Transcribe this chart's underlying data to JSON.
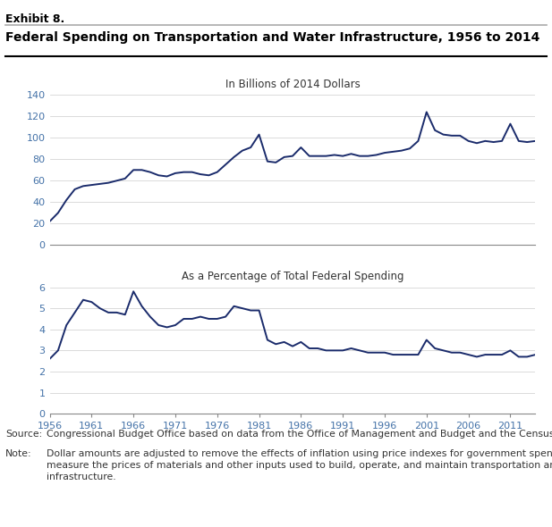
{
  "exhibit_label": "Exhibit 8.",
  "title": "Federal Spending on Transportation and Water Infrastructure, 1956 to 2014",
  "subtitle1": "In Billions of 2014 Dollars",
  "subtitle2": "As a Percentage of Total Federal Spending",
  "source_label": "Source:",
  "source_text": "Congressional Budget Office based on data from the Office of Management and Budget and the Census Bureau.",
  "note_label": "Note:",
  "note_text": "Dollar amounts are adjusted to remove the effects of inflation using price indexes for government spending that measure the prices of materials and other inputs used to build, operate, and maintain transportation and water infrastructure.",
  "line_color": "#1a2b6b",
  "years": [
    1956,
    1957,
    1958,
    1959,
    1960,
    1961,
    1962,
    1963,
    1964,
    1965,
    1966,
    1967,
    1968,
    1969,
    1970,
    1971,
    1972,
    1973,
    1974,
    1975,
    1976,
    1977,
    1978,
    1979,
    1980,
    1981,
    1982,
    1983,
    1984,
    1985,
    1986,
    1987,
    1988,
    1989,
    1990,
    1991,
    1992,
    1993,
    1994,
    1995,
    1996,
    1997,
    1998,
    1999,
    2000,
    2001,
    2002,
    2003,
    2004,
    2005,
    2006,
    2007,
    2008,
    2009,
    2010,
    2011,
    2012,
    2013,
    2014
  ],
  "billions": [
    22,
    30,
    42,
    52,
    55,
    56,
    57,
    58,
    60,
    62,
    70,
    70,
    68,
    65,
    64,
    67,
    68,
    68,
    66,
    65,
    68,
    75,
    82,
    88,
    91,
    103,
    78,
    77,
    82,
    83,
    91,
    83,
    83,
    83,
    84,
    83,
    85,
    83,
    83,
    84,
    86,
    87,
    88,
    90,
    97,
    124,
    107,
    103,
    102,
    102,
    97,
    95,
    97,
    96,
    97,
    113,
    97,
    96,
    97
  ],
  "pct": [
    2.6,
    3.0,
    4.2,
    4.8,
    5.4,
    5.3,
    5.0,
    4.8,
    4.8,
    4.7,
    5.8,
    5.1,
    4.6,
    4.2,
    4.1,
    4.2,
    4.5,
    4.5,
    4.6,
    4.5,
    4.5,
    4.6,
    5.1,
    5.0,
    4.9,
    4.9,
    3.5,
    3.3,
    3.4,
    3.2,
    3.4,
    3.1,
    3.1,
    3.0,
    3.0,
    3.0,
    3.1,
    3.0,
    2.9,
    2.9,
    2.9,
    2.8,
    2.8,
    2.8,
    2.8,
    3.5,
    3.1,
    3.0,
    2.9,
    2.9,
    2.8,
    2.7,
    2.8,
    2.8,
    2.8,
    3.0,
    2.7,
    2.7,
    2.8
  ],
  "xtick_years": [
    1956,
    1961,
    1966,
    1971,
    1976,
    1981,
    1986,
    1991,
    1996,
    2001,
    2006,
    2011
  ],
  "ylim1": [
    0,
    140
  ],
  "yticks1": [
    0,
    20,
    40,
    60,
    80,
    100,
    120,
    140
  ],
  "ylim2": [
    0,
    6
  ],
  "yticks2": [
    0,
    1,
    2,
    3,
    4,
    5,
    6
  ],
  "background_color": "#FFFFFF",
  "tick_color": "#4472A8",
  "spine_color": "#888888"
}
